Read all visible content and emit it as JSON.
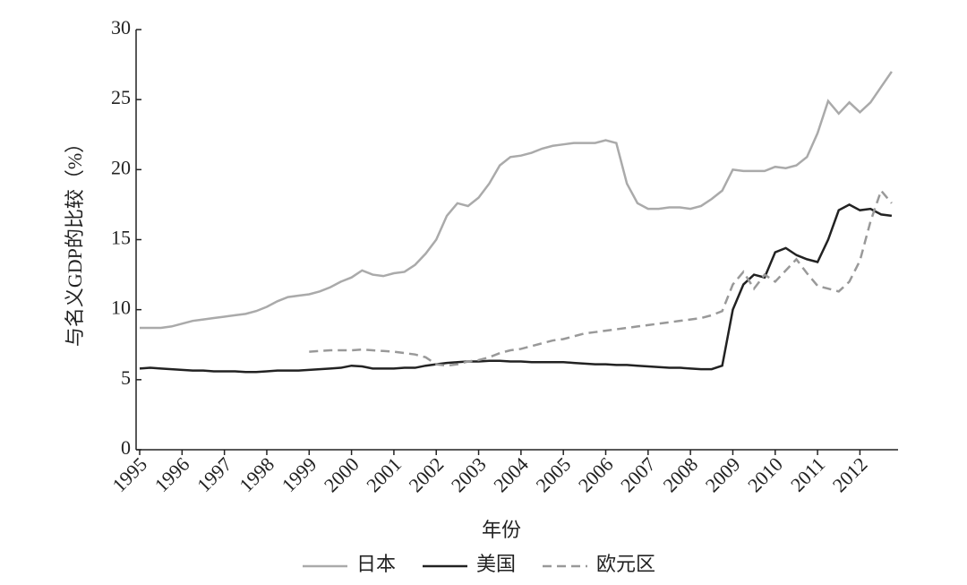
{
  "chart_data": {
    "type": "line",
    "x_label": "年份",
    "y_label": "与名义GDP的比较（%）",
    "x": [
      1995,
      1995.25,
      1995.5,
      1995.75,
      1996,
      1996.25,
      1996.5,
      1996.75,
      1997,
      1997.25,
      1997.5,
      1997.75,
      1998,
      1998.25,
      1998.5,
      1998.75,
      1999,
      1999.25,
      1999.5,
      1999.75,
      2000,
      2000.25,
      2000.5,
      2000.75,
      2001,
      2001.25,
      2001.5,
      2001.75,
      2002,
      2002.25,
      2002.5,
      2002.75,
      2003,
      2003.25,
      2003.5,
      2003.75,
      2004,
      2004.25,
      2004.5,
      2004.75,
      2005,
      2005.25,
      2005.5,
      2005.75,
      2006,
      2006.25,
      2006.5,
      2006.75,
      2007,
      2007.25,
      2007.5,
      2007.75,
      2008,
      2008.25,
      2008.5,
      2008.75,
      2009,
      2009.25,
      2009.5,
      2009.75,
      2010,
      2010.25,
      2010.5,
      2010.75,
      2011,
      2011.25,
      2011.5,
      2011.75,
      2012,
      2012.25,
      2012.5,
      2012.75
    ],
    "series": [
      {
        "name": "日本",
        "color": "#aaaaaa",
        "dashed": false,
        "values": [
          8.7,
          8.7,
          8.7,
          8.8,
          9.0,
          9.2,
          9.3,
          9.4,
          9.5,
          9.6,
          9.7,
          9.9,
          10.2,
          10.6,
          10.9,
          11.0,
          11.1,
          11.3,
          11.6,
          12.0,
          12.3,
          12.8,
          12.5,
          12.4,
          12.6,
          12.7,
          13.2,
          14.0,
          15.0,
          16.7,
          17.6,
          17.4,
          18.0,
          19.0,
          20.3,
          20.9,
          21.0,
          21.2,
          21.5,
          21.7,
          21.8,
          21.9,
          21.9,
          21.9,
          22.1,
          21.9,
          19.0,
          17.6,
          17.2,
          17.2,
          17.3,
          17.3,
          17.2,
          17.4,
          17.9,
          18.5,
          20.0,
          19.9,
          19.9,
          19.9,
          20.2,
          20.1,
          20.3,
          20.9,
          22.6,
          24.9,
          24.0,
          24.8,
          24.1,
          24.8,
          25.9,
          27.0
        ]
      },
      {
        "name": "美国",
        "color": "#222222",
        "dashed": false,
        "values": [
          5.8,
          5.85,
          5.8,
          5.75,
          5.7,
          5.65,
          5.65,
          5.6,
          5.6,
          5.6,
          5.55,
          5.55,
          5.6,
          5.65,
          5.65,
          5.65,
          5.7,
          5.75,
          5.8,
          5.85,
          6.0,
          5.95,
          5.8,
          5.8,
          5.8,
          5.85,
          5.85,
          6.0,
          6.1,
          6.2,
          6.25,
          6.3,
          6.3,
          6.35,
          6.35,
          6.3,
          6.3,
          6.25,
          6.25,
          6.25,
          6.25,
          6.2,
          6.15,
          6.1,
          6.1,
          6.05,
          6.05,
          6.0,
          5.95,
          5.9,
          5.85,
          5.85,
          5.8,
          5.75,
          5.75,
          6.0,
          10.0,
          11.8,
          12.5,
          12.3,
          14.1,
          14.4,
          13.9,
          13.6,
          13.4,
          15.0,
          17.1,
          17.5,
          17.1,
          17.2,
          16.8,
          16.7
        ]
      },
      {
        "name": "欧元区",
        "color": "#999999",
        "dashed": true,
        "values": [
          null,
          null,
          null,
          null,
          null,
          null,
          null,
          null,
          null,
          null,
          null,
          null,
          null,
          null,
          null,
          null,
          7.0,
          7.05,
          7.1,
          7.1,
          7.1,
          7.15,
          7.1,
          7.05,
          7.0,
          6.9,
          6.8,
          6.6,
          6.1,
          6.0,
          6.1,
          6.3,
          6.4,
          6.6,
          6.9,
          7.1,
          7.2,
          7.4,
          7.6,
          7.8,
          7.9,
          8.1,
          8.3,
          8.4,
          8.5,
          8.6,
          8.7,
          8.8,
          8.9,
          9.0,
          9.1,
          9.2,
          9.3,
          9.4,
          9.6,
          9.9,
          11.8,
          12.7,
          11.5,
          12.5,
          12.0,
          12.8,
          13.6,
          12.6,
          11.7,
          11.5,
          11.3,
          12.0,
          13.5,
          16.3,
          18.5,
          17.6
        ]
      }
    ],
    "xlim": [
      1995,
      2012.9
    ],
    "xticks": [
      1995,
      1996,
      1997,
      1998,
      1999,
      2000,
      2001,
      2002,
      2003,
      2004,
      2005,
      2006,
      2007,
      2008,
      2009,
      2010,
      2011,
      2012
    ],
    "ylim": [
      0,
      30
    ],
    "yticks": [
      0,
      5,
      10,
      15,
      20,
      25,
      30
    ],
    "legend": "bottom"
  }
}
